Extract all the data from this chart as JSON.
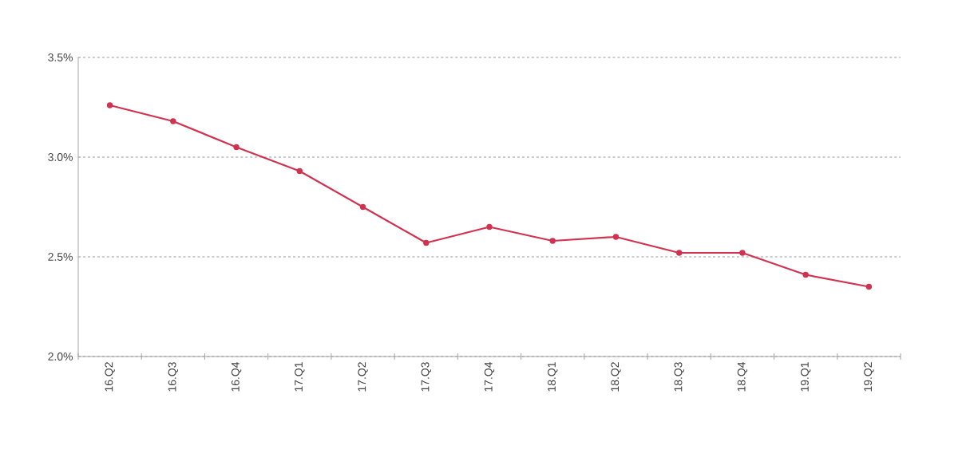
{
  "chart_data": {
    "type": "line",
    "categories": [
      "16.Q2",
      "16.Q3",
      "16.Q4",
      "17.Q1",
      "17.Q2",
      "17.Q3",
      "17.Q4",
      "18.Q1",
      "18.Q2",
      "18.Q3",
      "18.Q4",
      "19.Q1",
      "19.Q2"
    ],
    "series": [
      {
        "color": "#d0324f",
        "values": [
          3.26,
          3.18,
          3.05,
          2.93,
          2.75,
          2.57,
          2.65,
          2.58,
          2.6,
          2.52,
          2.52,
          2.41,
          2.35
        ]
      }
    ],
    "ylim": [
      2.0,
      3.5
    ],
    "yticks": [
      {
        "value": 2.0,
        "label": "2.0%"
      },
      {
        "value": 2.5,
        "label": "2.5%"
      },
      {
        "value": 3.0,
        "label": "3.0%"
      },
      {
        "value": 3.5,
        "label": "3.5%"
      }
    ],
    "grid": "y",
    "marker": "circle",
    "line_style": "solid"
  }
}
